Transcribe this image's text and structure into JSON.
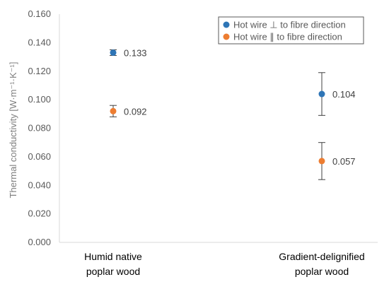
{
  "chart_data": {
    "type": "scatter",
    "ylabel": "Thermal conductivity [W·m⁻¹·K⁻¹]",
    "ylim": [
      0,
      0.16
    ],
    "yticks": [
      "0.000",
      "0.020",
      "0.040",
      "0.060",
      "0.080",
      "0.100",
      "0.120",
      "0.140",
      "0.160"
    ],
    "categories": [
      [
        "Humid native",
        "poplar wood"
      ],
      [
        "Gradient-delignified",
        "poplar wood"
      ]
    ],
    "grid": false,
    "legend_position": "top-right",
    "series": [
      {
        "name": "Hot wire ⊥ to fibre direction",
        "color": "#2e75b6",
        "values": [
          0.133,
          0.104
        ],
        "error": [
          0.002,
          0.015
        ],
        "labels": [
          "0.133",
          "0.104"
        ]
      },
      {
        "name": "Hot wire ∥ to fibre direction",
        "color": "#ed7d31",
        "values": [
          0.092,
          0.057
        ],
        "error": [
          0.004,
          0.013
        ],
        "labels": [
          "0.092",
          "0.057"
        ]
      }
    ]
  }
}
